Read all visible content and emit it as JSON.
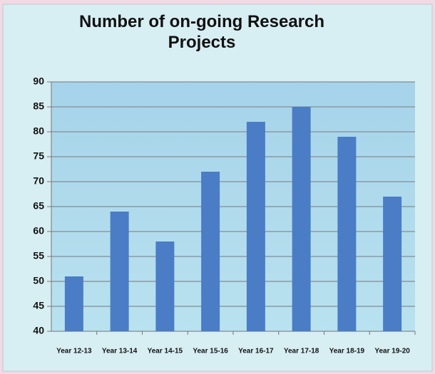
{
  "chart_data": {
    "type": "bar",
    "title": "Number of on-going Research Projects",
    "categories": [
      "Year 12-13",
      "Year 13-14",
      "Year 14-15",
      "Year 15-16",
      "Year 16-17",
      "Year 17-18",
      "Year 18-19",
      "Year 19-20"
    ],
    "values": [
      51,
      64,
      58,
      72,
      82,
      85,
      79,
      67
    ],
    "color": "#4a7dc6",
    "ylim": [
      40,
      90
    ],
    "yticks": [
      40,
      45,
      50,
      55,
      60,
      65,
      70,
      75,
      80,
      85,
      90
    ],
    "grid": true
  }
}
